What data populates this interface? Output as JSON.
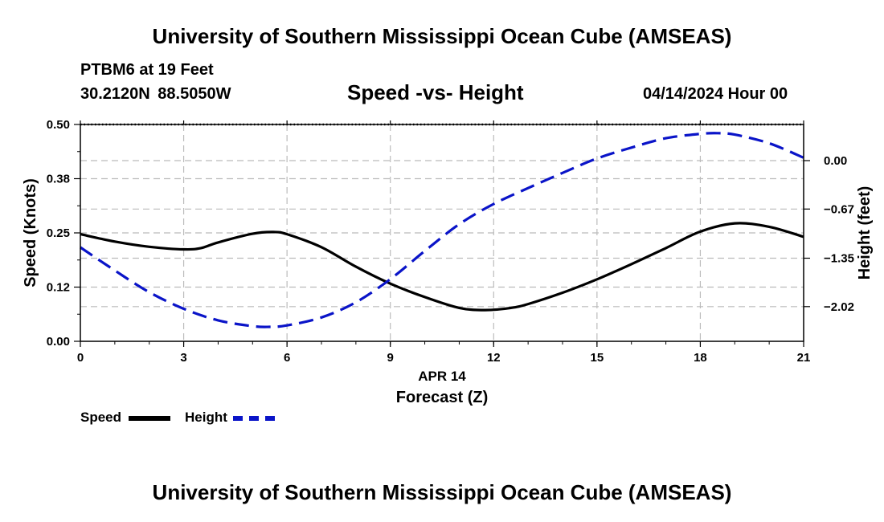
{
  "header": {
    "title": "University of Southern Mississippi Ocean Cube (AMSEAS)",
    "station": "PTBM6 at 19 Feet",
    "coords": "30.2120N  88.5050W",
    "datetime": "04/14/2024 Hour 00"
  },
  "footer": {
    "title": "University of Southern Mississippi Ocean Cube (AMSEAS)"
  },
  "legend": {
    "speed_label": "Speed",
    "height_label": "Height"
  },
  "colors": {
    "speed": "#000000",
    "height": "#0a14c8",
    "grid": "#bbbbbb"
  },
  "chart_data": {
    "type": "line",
    "title": "Speed -vs- Height",
    "xlabel": "Forecast (Z)",
    "xlabel_date": "APR 14",
    "ylabel_left": "Speed (Knots)",
    "ylabel_right": "Height (feet)",
    "xlim": [
      0,
      21
    ],
    "ylim_left": [
      0,
      0.5
    ],
    "ylim_right": [
      -2.5,
      0.5
    ],
    "x_ticks": [
      0,
      3,
      6,
      9,
      12,
      15,
      18,
      21
    ],
    "x_tick_labels": [
      "0",
      "3",
      "6",
      "9",
      "12",
      "15",
      "18",
      "21"
    ],
    "y_left_ticks": [
      0,
      0.125,
      0.25,
      0.375,
      0.5
    ],
    "y_left_tick_labels": [
      "0.00",
      "0.12",
      "0.25",
      "0.38",
      "0.50"
    ],
    "y_right_ticks": [
      -2.02,
      -1.35,
      -0.67,
      0.0
    ],
    "y_right_tick_labels": [
      "−2.02",
      "−1.35",
      "−0.67",
      "0.00"
    ],
    "grid": true,
    "series": [
      {
        "name": "Speed",
        "axis": "left",
        "style": "solid",
        "x": [
          0,
          1,
          2,
          3,
          3.5,
          4,
          5,
          5.6,
          6,
          7,
          8,
          9,
          10,
          11,
          11.75,
          12.5,
          13,
          14,
          15,
          16,
          17,
          18,
          19,
          20,
          21
        ],
        "values": [
          0.247,
          0.23,
          0.218,
          0.212,
          0.215,
          0.228,
          0.248,
          0.252,
          0.247,
          0.217,
          0.172,
          0.133,
          0.102,
          0.077,
          0.072,
          0.077,
          0.086,
          0.112,
          0.143,
          0.178,
          0.215,
          0.253,
          0.272,
          0.264,
          0.241
        ]
      },
      {
        "name": "Height",
        "axis": "right",
        "style": "dashed",
        "x": [
          0,
          1,
          2,
          3,
          4,
          5,
          5.5,
          6,
          7,
          8,
          9,
          10,
          11,
          12,
          13,
          14,
          15,
          16,
          17,
          18,
          18.5,
          19,
          20,
          21
        ],
        "values": [
          -1.2,
          -1.52,
          -1.82,
          -2.05,
          -2.21,
          -2.29,
          -2.3,
          -2.28,
          -2.17,
          -1.96,
          -1.64,
          -1.25,
          -0.88,
          -0.6,
          -0.38,
          -0.17,
          0.03,
          0.18,
          0.31,
          0.37,
          0.38,
          0.36,
          0.24,
          0.04
        ]
      }
    ]
  }
}
